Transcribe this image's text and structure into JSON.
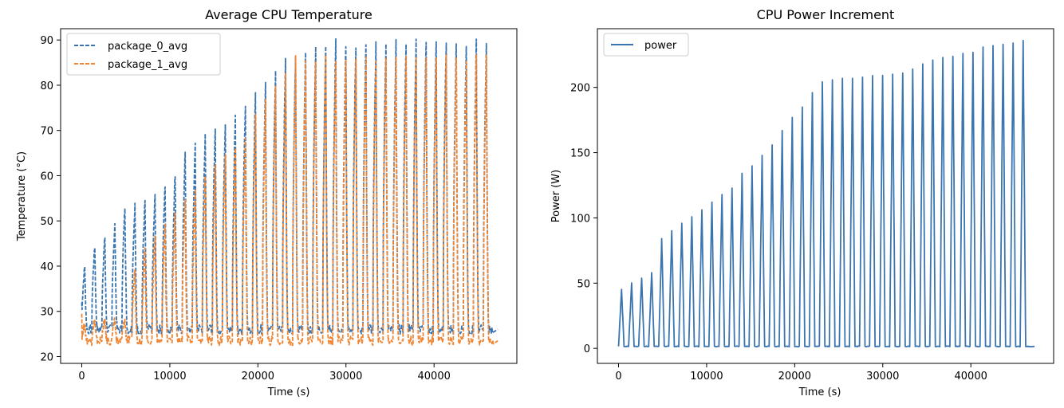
{
  "colors": {
    "blue": "#3b75af",
    "orange": "#ef8636",
    "axes": "#000000"
  },
  "chart_data": [
    {
      "type": "line",
      "title": "Average CPU Temperature",
      "xlabel": "Time (s)",
      "ylabel": "Temperature (°C)",
      "xlim": [
        -2400,
        49400
      ],
      "ylim": [
        18.5,
        92.5
      ],
      "xticks": [
        0,
        10000,
        20000,
        30000,
        40000
      ],
      "yticks": [
        20,
        30,
        40,
        50,
        60,
        70,
        80,
        90
      ],
      "grid": false,
      "legend_position": "top-left",
      "line_style": "dashed",
      "cycle_count": 41,
      "cycle_length_s": 1140,
      "series": [
        {
          "name": "package_0_avg",
          "color": "#3b75af",
          "baseline": 26,
          "peaks": [
            40,
            44.5,
            46.5,
            49,
            53.5,
            53.5,
            54.5,
            55.5,
            58,
            60.5,
            65,
            66.5,
            69,
            71,
            71.5,
            73,
            75.5,
            78,
            80.5,
            82.5,
            86,
            86.5,
            88,
            88,
            88,
            89.5,
            89,
            89,
            89.5,
            89,
            89.5,
            89.5,
            89.5,
            89.5,
            89.5,
            89.5,
            89.5,
            89.5,
            89,
            89.5,
            89
          ]
        },
        {
          "name": "package_1_avg",
          "color": "#ef8636",
          "baseline": 23.5,
          "peaks": [
            27,
            28,
            28,
            28,
            28,
            39.5,
            44,
            46.5,
            49.5,
            51,
            54.5,
            56.5,
            60.5,
            63,
            65,
            66.5,
            68.5,
            73,
            76.5,
            79.5,
            82,
            86,
            85.5,
            86,
            86,
            86,
            86,
            86,
            86,
            86,
            86,
            86,
            86,
            86,
            86,
            86,
            86,
            86,
            86,
            86,
            86
          ]
        }
      ]
    },
    {
      "type": "line",
      "title": "CPU Power Increment",
      "xlabel": "Time (s)",
      "ylabel": "Power (W)",
      "xlim": [
        -2400,
        49400
      ],
      "ylim": [
        -11.5,
        245
      ],
      "xticks": [
        0,
        10000,
        20000,
        30000,
        40000
      ],
      "yticks": [
        0,
        50,
        100,
        150,
        200
      ],
      "grid": false,
      "legend_position": "top-left",
      "line_style": "solid",
      "cycle_count": 41,
      "cycle_length_s": 1140,
      "series": [
        {
          "name": "power",
          "color": "#3b75af",
          "baseline": 1.5,
          "peaks": [
            45,
            50,
            54,
            58,
            84,
            90,
            96,
            101,
            106,
            112,
            118,
            123,
            134,
            140,
            148,
            156,
            167,
            177,
            185,
            196,
            204,
            206,
            207,
            207,
            208,
            209,
            209,
            210,
            211,
            214,
            218,
            221,
            223,
            224,
            226,
            227,
            231,
            232,
            233,
            234,
            236
          ]
        }
      ]
    }
  ]
}
